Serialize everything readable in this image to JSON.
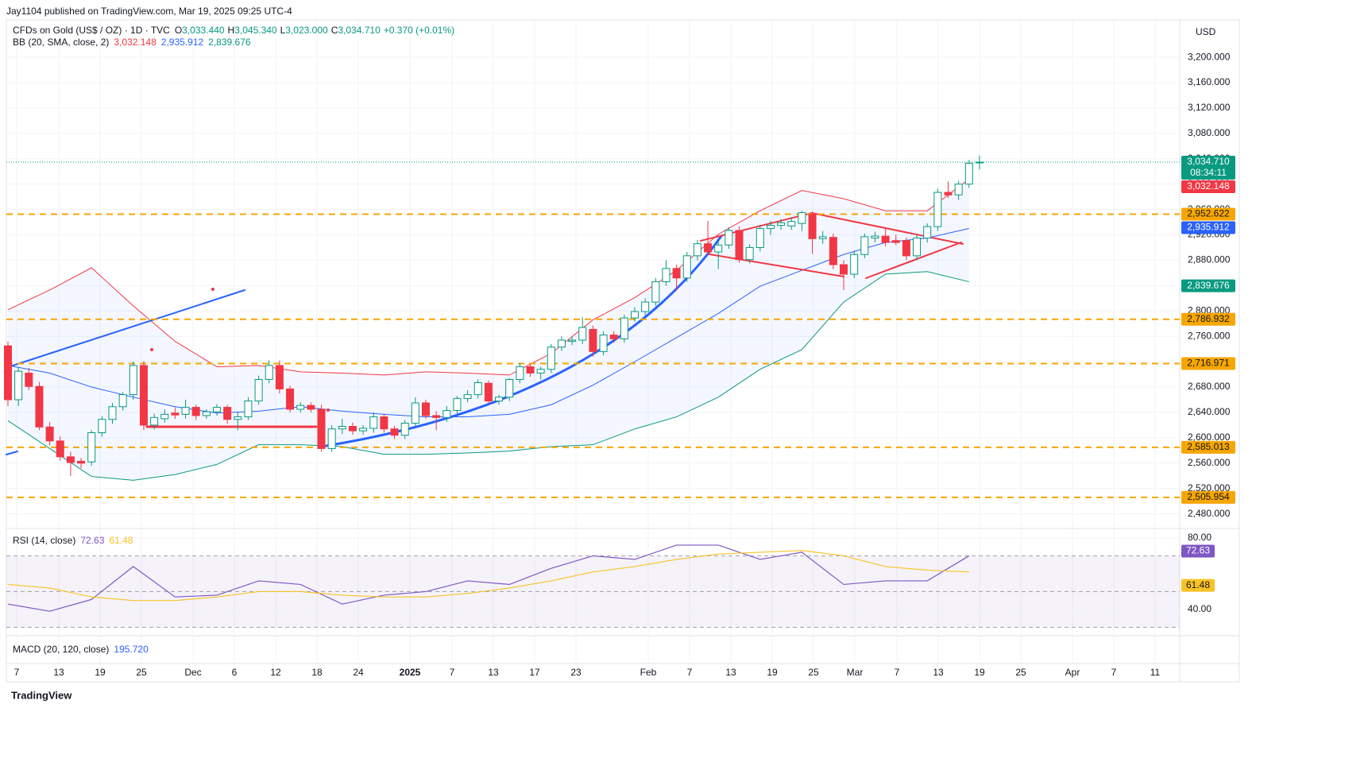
{
  "publisher": "Jay1104 published on TradingView.com, Mar 19, 2025 09:25 UTC-4",
  "footer": "TradingView",
  "currency": "USD",
  "chart_data": {
    "type": "candlestick",
    "symbol": "CFDs on Gold (US$ / OZ) · 1D · TVC",
    "legend": [
      {
        "key": "O",
        "label": "3,033.440"
      },
      {
        "key": "H",
        "label": "3,045.340"
      },
      {
        "key": "L",
        "label": "3,023.000"
      },
      {
        "key": "C",
        "label": "3,034.710"
      }
    ],
    "change": "+0.370 (+0.01%)",
    "up_color": "#089981",
    "down_color": "#f23645",
    "ohlc": [
      [
        2745,
        2752,
        2650,
        2660
      ],
      [
        2660,
        2712,
        2650,
        2705
      ],
      [
        2702,
        2710,
        2675,
        2681
      ],
      [
        2681,
        2688,
        2612,
        2617
      ],
      [
        2617,
        2625,
        2588,
        2595
      ],
      [
        2595,
        2602,
        2564,
        2570
      ],
      [
        2570,
        2578,
        2540,
        2561
      ],
      [
        2563,
        2568,
        2552,
        2560
      ],
      [
        2562,
        2612,
        2556,
        2608
      ],
      [
        2608,
        2634,
        2602,
        2629
      ],
      [
        2629,
        2655,
        2622,
        2649
      ],
      [
        2649,
        2672,
        2643,
        2668
      ],
      [
        2668,
        2720,
        2660,
        2714
      ],
      [
        2714,
        2721,
        2612,
        2620
      ],
      [
        2620,
        2638,
        2613,
        2632
      ],
      [
        2630,
        2645,
        2624,
        2637
      ],
      [
        2639,
        2648,
        2630,
        2636
      ],
      [
        2637,
        2660,
        2630,
        2648
      ],
      [
        2648,
        2652,
        2628,
        2635
      ],
      [
        2635,
        2645,
        2630,
        2641
      ],
      [
        2641,
        2653,
        2635,
        2648
      ],
      [
        2648,
        2652,
        2622,
        2629
      ],
      [
        2629,
        2640,
        2612,
        2633
      ],
      [
        2633,
        2664,
        2628,
        2658
      ],
      [
        2658,
        2698,
        2652,
        2692
      ],
      [
        2692,
        2722,
        2686,
        2714
      ],
      [
        2714,
        2722,
        2670,
        2677
      ],
      [
        2677,
        2682,
        2640,
        2645
      ],
      [
        2645,
        2656,
        2640,
        2651
      ],
      [
        2651,
        2656,
        2640,
        2645
      ],
      [
        2645,
        2652,
        2578,
        2583
      ],
      [
        2583,
        2620,
        2578,
        2614
      ],
      [
        2614,
        2630,
        2606,
        2618
      ],
      [
        2618,
        2624,
        2605,
        2611
      ],
      [
        2611,
        2620,
        2605,
        2615
      ],
      [
        2615,
        2640,
        2608,
        2633
      ],
      [
        2633,
        2638,
        2608,
        2614
      ],
      [
        2614,
        2619,
        2598,
        2604
      ],
      [
        2604,
        2628,
        2598,
        2623
      ],
      [
        2623,
        2664,
        2618,
        2655
      ],
      [
        2655,
        2660,
        2630,
        2635
      ],
      [
        2635,
        2642,
        2612,
        2632
      ],
      [
        2632,
        2650,
        2625,
        2643
      ],
      [
        2643,
        2666,
        2638,
        2662
      ],
      [
        2662,
        2675,
        2656,
        2668
      ],
      [
        2668,
        2692,
        2662,
        2687
      ],
      [
        2686,
        2690,
        2652,
        2658
      ],
      [
        2658,
        2668,
        2652,
        2664
      ],
      [
        2664,
        2694,
        2658,
        2692
      ],
      [
        2692,
        2718,
        2686,
        2712
      ],
      [
        2712,
        2716,
        2696,
        2702
      ],
      [
        2702,
        2712,
        2692,
        2708
      ],
      [
        2708,
        2748,
        2702,
        2743
      ],
      [
        2743,
        2760,
        2737,
        2754
      ],
      [
        2752,
        2760,
        2746,
        2754
      ],
      [
        2754,
        2790,
        2748,
        2774
      ],
      [
        2771,
        2777,
        2728,
        2736
      ],
      [
        2736,
        2768,
        2730,
        2762
      ],
      [
        2762,
        2768,
        2750,
        2756
      ],
      [
        2756,
        2794,
        2750,
        2789
      ],
      [
        2789,
        2806,
        2783,
        2799
      ],
      [
        2799,
        2820,
        2793,
        2814
      ],
      [
        2814,
        2852,
        2808,
        2846
      ],
      [
        2846,
        2880,
        2840,
        2867
      ],
      [
        2867,
        2873,
        2832,
        2852
      ],
      [
        2852,
        2893,
        2846,
        2887
      ],
      [
        2887,
        2912,
        2880,
        2906
      ],
      [
        2906,
        2942,
        2888,
        2893
      ],
      [
        2893,
        2912,
        2866,
        2904
      ],
      [
        2904,
        2932,
        2898,
        2927
      ],
      [
        2927,
        2933,
        2876,
        2881
      ],
      [
        2881,
        2905,
        2875,
        2900
      ],
      [
        2900,
        2936,
        2894,
        2930
      ],
      [
        2930,
        2942,
        2920,
        2935
      ],
      [
        2935,
        2945,
        2928,
        2939
      ],
      [
        2934,
        2948,
        2928,
        2941
      ],
      [
        2938,
        2958,
        2926,
        2955
      ],
      [
        2952,
        2957,
        2890,
        2914
      ],
      [
        2914,
        2926,
        2906,
        2917
      ],
      [
        2916,
        2922,
        2866,
        2873
      ],
      [
        2873,
        2880,
        2833,
        2858
      ],
      [
        2858,
        2895,
        2852,
        2889
      ],
      [
        2889,
        2922,
        2883,
        2917
      ],
      [
        2915,
        2925,
        2908,
        2918
      ],
      [
        2918,
        2930,
        2902,
        2908
      ],
      [
        2911,
        2920,
        2904,
        2908
      ],
      [
        2911,
        2916,
        2880,
        2887
      ],
      [
        2887,
        2920,
        2880,
        2915
      ],
      [
        2915,
        2938,
        2908,
        2933
      ],
      [
        2933,
        2993,
        2926,
        2987
      ],
      [
        2987,
        3004,
        2978,
        2983
      ],
      [
        2983,
        3005,
        2975,
        3000
      ],
      [
        3000,
        3038,
        2994,
        3033
      ],
      [
        3033.44,
        3045.34,
        3023,
        3034.71
      ]
    ],
    "last_price": {
      "value": 3034.71,
      "label": "3,034.710",
      "countdown": "08:34:11",
      "color": "#089981"
    },
    "bb": {
      "name": "BB (20, SMA, close, 2)",
      "x": [
        0,
        4,
        8,
        12,
        16,
        20,
        24,
        28,
        32,
        36,
        40,
        44,
        48,
        52,
        56,
        60,
        64,
        68,
        72,
        76,
        80,
        84,
        88,
        92
      ],
      "series": [
        {
          "color": "#f23645",
          "values": [
            2802,
            2833,
            2868,
            2808,
            2752,
            2712,
            2714,
            2704,
            2702,
            2699,
            2704,
            2702,
            2699,
            2733,
            2786,
            2821,
            2864,
            2921,
            2958,
            2990,
            2977,
            2958,
            2958,
            3008
          ],
          "last": {
            "value": 3032.148,
            "label": "3,032.148"
          }
        },
        {
          "color": "#2962ff",
          "values": [
            2714,
            2702,
            2680,
            2664,
            2649,
            2639,
            2642,
            2649,
            2642,
            2637,
            2633,
            2633,
            2637,
            2652,
            2683,
            2720,
            2758,
            2796,
            2839,
            2864,
            2889,
            2908,
            2915,
            2930
          ],
          "last": {
            "value": 2935.912,
            "label": "2,935.912"
          }
        },
        {
          "color": "#089981",
          "values": [
            2627,
            2583,
            2539,
            2533,
            2542,
            2558,
            2589,
            2589,
            2586,
            2574,
            2574,
            2576,
            2579,
            2586,
            2589,
            2614,
            2633,
            2664,
            2708,
            2739,
            2814,
            2858,
            2862,
            2846
          ],
          "last": {
            "value": 2839.676,
            "label": "2,839.676"
          }
        }
      ],
      "fill": "#2962ff"
    },
    "levels": {
      "color": "#f7a600",
      "items": [
        {
          "value": 2952.622,
          "label": "2,952.622"
        },
        {
          "value": 2786.932,
          "label": "2,786.932"
        },
        {
          "value": 2716.971,
          "label": "2,716.971"
        },
        {
          "value": 2585.013,
          "label": "2,585.013"
        },
        {
          "value": 2505.954,
          "label": "2,505.954"
        }
      ]
    },
    "ylim": [
      2457,
      3259
    ],
    "yticks": [
      {
        "value": 3200,
        "label": "3,200.000"
      },
      {
        "value": 3160,
        "label": "3,160.000"
      },
      {
        "value": 3120,
        "label": "3,120.000"
      },
      {
        "value": 3080,
        "label": "3,080.000"
      },
      {
        "value": 3040,
        "label": "3,040.000"
      },
      {
        "value": 3000,
        "label": "3,000.000"
      },
      {
        "value": 2960,
        "label": "2,960.000"
      },
      {
        "value": 2920,
        "label": "2,920.000"
      },
      {
        "value": 2880,
        "label": "2,880.000"
      },
      {
        "value": 2840,
        "label": "2,840.000"
      },
      {
        "value": 2800,
        "label": "2,800.000"
      },
      {
        "value": 2760,
        "label": "2,760.000"
      },
      {
        "value": 2720,
        "label": "2,720.000"
      },
      {
        "value": 2680,
        "label": "2,680.000"
      },
      {
        "value": 2640,
        "label": "2,640.000"
      },
      {
        "value": 2600,
        "label": "2,600.000"
      },
      {
        "value": 2560,
        "label": "2,560.000"
      },
      {
        "value": 2520,
        "label": "2,520.000"
      },
      {
        "value": 2480,
        "label": "2,480.000"
      }
    ],
    "xticks": [
      "7",
      "13",
      "19",
      "25",
      "Dec",
      "6",
      "12",
      "18",
      "24",
      "2025",
      "7",
      "13",
      "17",
      "23",
      "Feb",
      "7",
      "13",
      "19",
      "25",
      "Mar",
      "7",
      "13",
      "19",
      "25",
      "Apr",
      "7",
      "11"
    ],
    "rsi": {
      "name": "RSI (14, close)",
      "x": [
        0,
        4,
        8,
        12,
        16,
        20,
        24,
        28,
        32,
        36,
        40,
        44,
        48,
        52,
        56,
        60,
        64,
        68,
        72,
        76,
        80,
        84,
        88,
        92
      ],
      "series": [
        {
          "color": "#7e57c2",
          "values": [
            43,
            39,
            45.6,
            64,
            47,
            48,
            56,
            54,
            43,
            48,
            50,
            56,
            54,
            63,
            70,
            68,
            76,
            76,
            68,
            72,
            54,
            56,
            56,
            70
          ],
          "last": {
            "value": 72.63,
            "label": "72.63"
          }
        },
        {
          "color": "#f7c325",
          "values": [
            54,
            52,
            47,
            45,
            45,
            47,
            50,
            50,
            48,
            47,
            47,
            49,
            52,
            56,
            61,
            64,
            68,
            71,
            72,
            73,
            70,
            64,
            62,
            61
          ],
          "last": {
            "value": 61.48,
            "label": "61.48"
          }
        }
      ],
      "levels": [
        70,
        50,
        30
      ],
      "ylim": [
        25.3,
        85.3
      ],
      "yticks": [
        {
          "value": 80,
          "label": "80.00"
        },
        {
          "value": 40,
          "label": "40.00"
        }
      ]
    },
    "macd": {
      "name": "MACD (20, 120, close)",
      "value_label": "195.720"
    }
  }
}
